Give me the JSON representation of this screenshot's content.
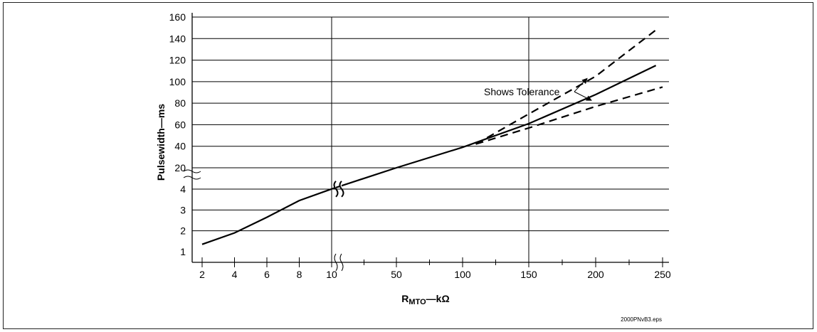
{
  "chart_data": {
    "type": "line",
    "ylabel": "Pulsewidth—ms",
    "xlabel": {
      "main": "R",
      "sub": "MTO",
      "rest": "—kΩ"
    },
    "x_tick_labels": [
      "2",
      "4",
      "6",
      "8",
      "10",
      "50",
      "100",
      "150",
      "200",
      "250"
    ],
    "y_tick_labels": [
      "1",
      "2",
      "3",
      "4",
      "20",
      "40",
      "60",
      "80",
      "100",
      "120",
      "140",
      "160"
    ],
    "x_scale": "broken: linear 2–10, then linear 10–250",
    "y_scale": "broken: linear 1–4, then linear 20–160",
    "xlim": [
      2,
      250
    ],
    "ylim": [
      1,
      160
    ],
    "grid": "horizontal at every y tick, vertical at x = 10 and x = 150",
    "series": [
      {
        "style": "solid",
        "points": [
          [
            2,
            1.35
          ],
          [
            4,
            1.9
          ],
          [
            6,
            2.65
          ],
          [
            8,
            3.45
          ],
          [
            10,
            4.1
          ],
          [
            50,
            20
          ],
          [
            100,
            39
          ],
          [
            150,
            61
          ],
          [
            200,
            88
          ],
          [
            245,
            115
          ]
        ]
      },
      {
        "style": "dashed",
        "points": [
          [
            110,
            42
          ],
          [
            150,
            70
          ],
          [
            200,
            105
          ],
          [
            245,
            148
          ]
        ]
      },
      {
        "style": "dashed",
        "points": [
          [
            110,
            42
          ],
          [
            150,
            57
          ],
          [
            200,
            77
          ],
          [
            250,
            95
          ]
        ]
      }
    ],
    "annotations": [
      {
        "text": "Shows Tolerance"
      }
    ]
  },
  "figure_id": "2000PNvB3.eps"
}
